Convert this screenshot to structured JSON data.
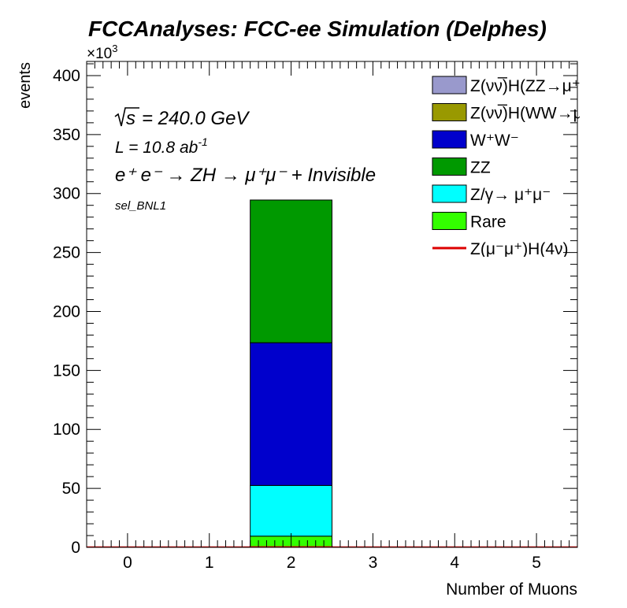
{
  "chart_data": {
    "type": "bar",
    "stacked": true,
    "title": "FCCAnalyses: FCC-ee Simulation (Delphes)",
    "xlabel": "Number of Muons",
    "ylabel": "events",
    "y_multiplier": "×10",
    "y_multiplier_exp": "3",
    "xlim": [
      -0.5,
      5.5
    ],
    "ylim": [
      0,
      412
    ],
    "x_ticks": [
      "0",
      "1",
      "2",
      "3",
      "4",
      "5"
    ],
    "y_ticks": [
      "0",
      "50",
      "100",
      "150",
      "200",
      "250",
      "300",
      "350",
      "400"
    ],
    "grid": false,
    "legend_position": "top-right",
    "annotations": {
      "sqrt_s": "= 240.0 GeV",
      "lumi": "L = 10.8 ab",
      "lumi_exp": "-1",
      "process": "e⁺ e⁻ → ZH → μ⁺μ⁻ + Invisible",
      "selection": "sel_BNL1"
    },
    "bins": [
      0,
      1,
      2,
      3,
      4,
      5
    ],
    "series": [
      {
        "name": "Rare",
        "color": "#33ff00",
        "values": [
          0,
          0,
          9.5,
          0,
          0,
          0
        ]
      },
      {
        "name": "Z/γ→ μ⁺μ⁻",
        "color": "#00ffff",
        "values": [
          0,
          0,
          43,
          0,
          0,
          0
        ]
      },
      {
        "name": "W⁺W⁻",
        "color": "#0000cc",
        "values": [
          0,
          0,
          121,
          0,
          0,
          0
        ]
      },
      {
        "name": "ZZ",
        "color": "#009900",
        "values": [
          0,
          0,
          121,
          0,
          0,
          0
        ]
      },
      {
        "name": "Z(νν̅)H(WW→μ⁺νμ⁻ν̅)",
        "color": "#999900",
        "values": [
          0,
          0,
          0,
          0,
          0,
          0
        ]
      },
      {
        "name": "Z(νν̅)H(ZZ→μ⁺μ⁻νν̅)",
        "color": "#9999cc",
        "values": [
          0,
          0,
          0,
          0,
          0,
          0
        ]
      }
    ],
    "signal": {
      "name": "Z(μ⁻μ⁺)H(4ν)",
      "color": "#dd0000",
      "values": [
        0,
        0,
        0.2,
        0,
        0,
        0
      ]
    },
    "legend": [
      {
        "label": "Z(νν̅)H(ZZ→μ⁺μ⁻νν̅)",
        "color": "#9999cc",
        "style": "box"
      },
      {
        "label": "Z(νν̅)H(WW→μ⁺νμ⁻ν̅)",
        "color": "#999900",
        "style": "box"
      },
      {
        "label": "W⁺W⁻",
        "color": "#0000cc",
        "style": "box"
      },
      {
        "label": "ZZ",
        "color": "#009900",
        "style": "box"
      },
      {
        "label": "Z/γ→ μ⁺μ⁻",
        "color": "#00ffff",
        "style": "box"
      },
      {
        "label": "Rare",
        "color": "#33ff00",
        "style": "box"
      },
      {
        "label": "Z(μ⁻μ⁺)H(4ν)",
        "color": "#dd0000",
        "style": "line"
      }
    ]
  }
}
